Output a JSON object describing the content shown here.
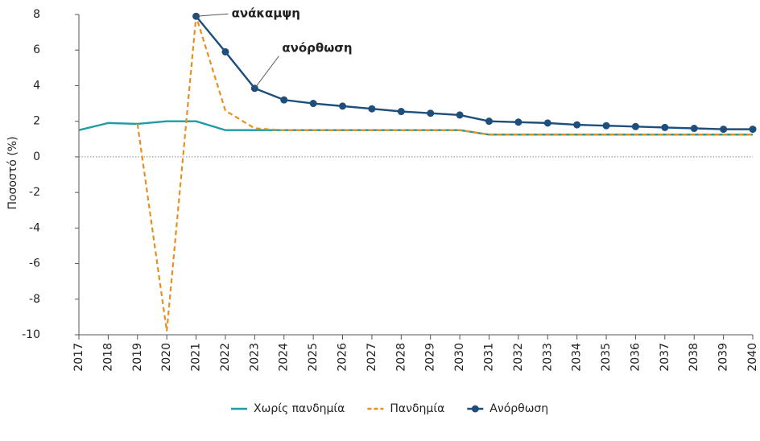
{
  "chart_data": {
    "type": "line",
    "y_label": "Ποσοστό  (%)",
    "categories": [
      "2017",
      "2018",
      "2019",
      "2020",
      "2021",
      "2022",
      "2023",
      "2024",
      "2025",
      "2026",
      "2027",
      "2028",
      "2029",
      "2030",
      "2031",
      "2032",
      "2033",
      "2034",
      "2035",
      "2036",
      "2037",
      "2038",
      "2039",
      "2040"
    ],
    "series": [
      {
        "name": "Χωρίς πανδημία",
        "color": "#1f9ba3",
        "dash": false,
        "markers": false,
        "values": [
          1.5,
          1.9,
          1.85,
          2.0,
          2.0,
          1.5,
          1.5,
          1.5,
          1.5,
          1.5,
          1.5,
          1.5,
          1.5,
          1.5,
          1.25,
          1.25,
          1.25,
          1.25,
          1.25,
          1.25,
          1.25,
          1.25,
          1.25,
          1.25
        ]
      },
      {
        "name": "Πανδημία",
        "color": "#e8901f",
        "dash": true,
        "markers": false,
        "values": [
          null,
          null,
          1.85,
          -9.8,
          7.9,
          2.6,
          1.6,
          1.5,
          1.5,
          1.5,
          1.5,
          1.5,
          1.5,
          1.5,
          1.25,
          1.25,
          1.25,
          1.25,
          1.25,
          1.25,
          1.25,
          1.25,
          1.25,
          1.25
        ]
      },
      {
        "name": "Ανόρθωση",
        "color": "#1d4e7c",
        "dash": false,
        "markers": true,
        "values": [
          null,
          null,
          null,
          null,
          7.9,
          5.9,
          3.85,
          3.2,
          3.0,
          2.85,
          2.7,
          2.55,
          2.45,
          2.35,
          2.0,
          1.95,
          1.9,
          1.8,
          1.75,
          1.7,
          1.65,
          1.6,
          1.55,
          1.55
        ]
      }
    ],
    "annotations": [
      {
        "text": "ανάκαμψη",
        "series": 2,
        "index": 4
      },
      {
        "text": "ανόρθωση",
        "series": 2,
        "index": 6
      }
    ],
    "ylim": [
      -10,
      8
    ],
    "yticks": [
      -10,
      -8,
      -6,
      -4,
      -2,
      0,
      2,
      4,
      6,
      8
    ],
    "zero_line": true
  }
}
